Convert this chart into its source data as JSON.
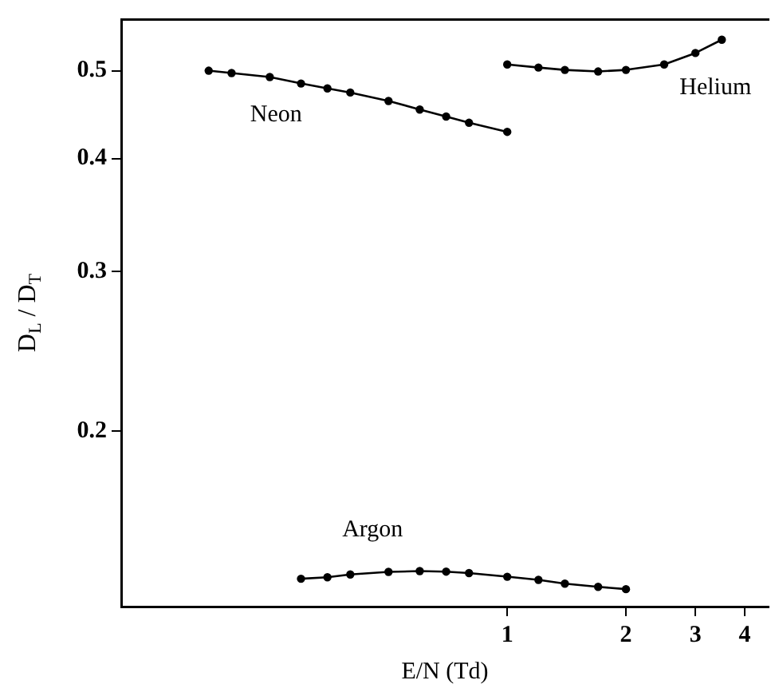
{
  "chart_data": {
    "type": "line",
    "xlabel": "E/N (Td)",
    "ylabel": "D$_{L}$ / D$_{T}$",
    "log": "xy",
    "grid": false,
    "legend": false,
    "marker": "circle",
    "line_style": "solid",
    "xlim": [
      0.105,
      4.6
    ],
    "ylim": [
      0.128,
      0.57
    ],
    "xticks": [
      1,
      2,
      3,
      4
    ],
    "yticks": [
      0.2,
      0.3,
      0.4,
      0.5
    ],
    "series": [
      {
        "name": "Neon",
        "color": "#000000",
        "x": [
          0.175,
          0.2,
          0.25,
          0.3,
          0.35,
          0.4,
          0.5,
          0.6,
          0.7,
          0.8,
          1.0
        ],
        "values": [
          0.5,
          0.497,
          0.492,
          0.484,
          0.478,
          0.473,
          0.463,
          0.453,
          0.445,
          0.438,
          0.428
        ]
      },
      {
        "name": "Helium",
        "color": "#000000",
        "x": [
          1,
          1.2,
          1.4,
          1.7,
          2,
          2.5,
          3,
          3.5
        ],
        "values": [
          0.508,
          0.504,
          0.501,
          0.499,
          0.501,
          0.508,
          0.523,
          0.541
        ]
      },
      {
        "name": "Argon",
        "color": "#000000",
        "x": [
          0.3,
          0.35,
          0.4,
          0.5,
          0.6,
          0.7,
          0.8,
          1,
          1.2,
          1.4,
          1.7,
          2
        ],
        "values": [
          0.1374,
          0.1379,
          0.1389,
          0.1398,
          0.1401,
          0.1399,
          0.1394,
          0.1381,
          0.137,
          0.1357,
          0.1346,
          0.1338
        ]
      }
    ]
  }
}
